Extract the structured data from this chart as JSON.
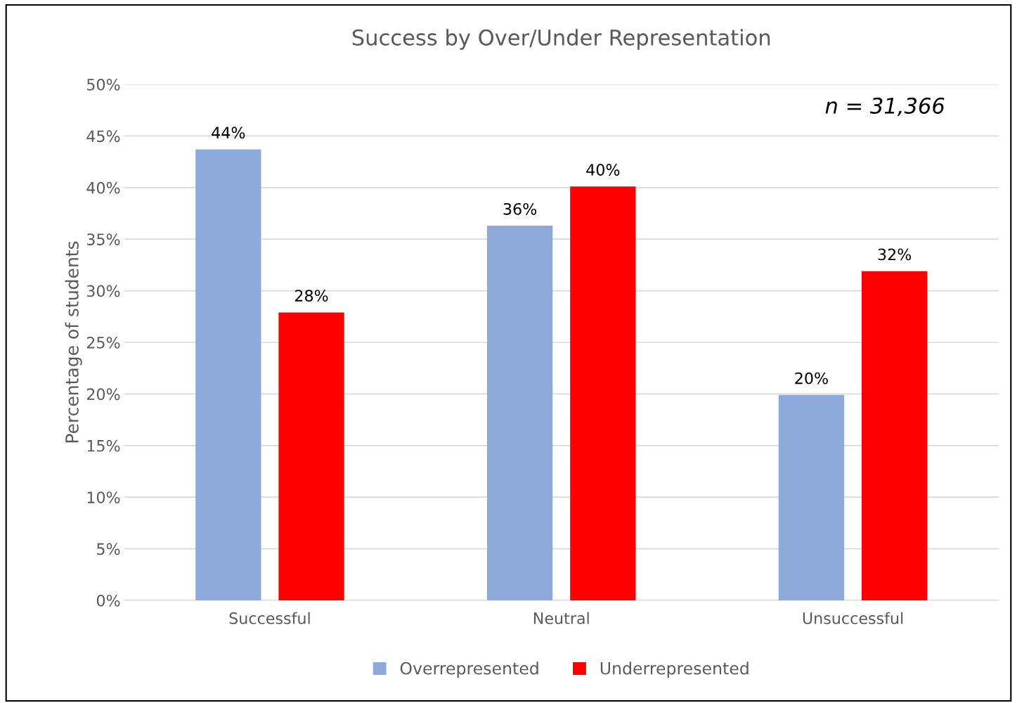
{
  "chart_data": {
    "type": "bar",
    "title": "Success by Over/Under Representation",
    "ylabel": "Percentage of students",
    "categories": [
      "Successful",
      "Neutral",
      "Unsuccessful"
    ],
    "series": [
      {
        "name": "Overrepresented",
        "color": "#8eaadb",
        "values": [
          43.7,
          36.3,
          19.9
        ],
        "value_labels": [
          "44%",
          "36%",
          "20%"
        ]
      },
      {
        "name": "Underrepresented",
        "color": "#ff0000",
        "values": [
          27.9,
          40.1,
          31.9
        ],
        "value_labels": [
          "28%",
          "40%",
          "32%"
        ]
      }
    ],
    "ylim": [
      0,
      50
    ],
    "yticks": [
      {
        "value": 0,
        "label": "0%"
      },
      {
        "value": 5,
        "label": "5%"
      },
      {
        "value": 10,
        "label": "10%"
      },
      {
        "value": 15,
        "label": "15%"
      },
      {
        "value": 20,
        "label": "20%"
      },
      {
        "value": 25,
        "label": "25%"
      },
      {
        "value": 30,
        "label": "30%"
      },
      {
        "value": 35,
        "label": "35%"
      },
      {
        "value": 40,
        "label": "40%"
      },
      {
        "value": 45,
        "label": "45%"
      },
      {
        "value": 50,
        "label": "50%"
      }
    ],
    "annotations": [
      "n = 31,366"
    ],
    "grid": "y",
    "legend": "bottom"
  }
}
